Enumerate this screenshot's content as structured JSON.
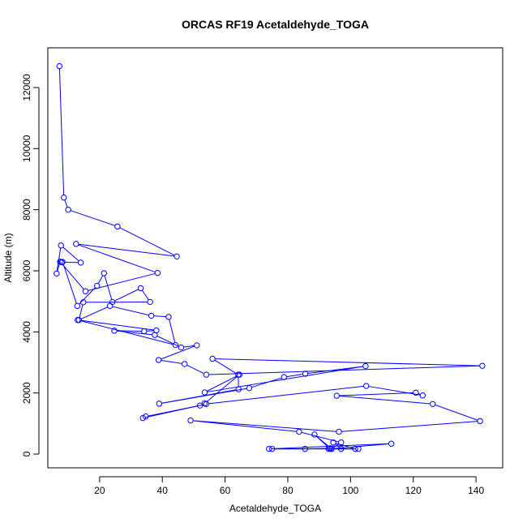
{
  "chart_data": {
    "type": "line",
    "title": "ORCAS RF19 Acetaldehyde_TOGA",
    "xlabel": "Acetaldehyde_TOGA",
    "ylabel": "Altitude (m)",
    "xlim": [
      3.5,
      148.5
    ],
    "ylim": [
      -450,
      13300
    ],
    "xticks": [
      20,
      40,
      60,
      80,
      100,
      120,
      140
    ],
    "yticks": [
      0,
      2000,
      4000,
      6000,
      8000,
      10000,
      12000
    ],
    "series_color": "#0000ff",
    "markers": "open-circle",
    "series": [
      {
        "x": [
          7.2,
          8.6,
          10.0,
          25.7,
          44.6,
          12.5,
          38.5,
          15.5,
          7.4,
          6.3,
          7.7,
          14.0,
          7.9,
          8.2,
          12.9,
          19.2,
          21.4,
          24.1,
          33.1,
          36.1,
          14.8,
          13.4,
          23.3,
          36.5,
          42.0,
          44.2,
          13.0,
          38.1,
          34.2,
          24.7,
          37.6,
          46.0,
          51.0,
          38.8,
          47.1,
          54.0,
          142.0,
          56.0,
          64.2,
          64.3,
          39.0,
          67.7,
          78.8,
          85.6,
          104.8,
          53.5,
          64.6,
          53.5,
          52.0,
          34.7,
          33.8,
          54.0,
          105.0,
          123.0,
          120.8,
          95.6,
          126.2,
          141.3,
          96.3,
          49.0,
          83.6,
          97.0,
          94.0,
          88.5,
          93.5,
          113.0,
          74.0,
          85.5,
          93.5,
          97.0,
          94.5,
          101.5,
          75.0,
          102.5,
          93.0
        ]
      }
    ],
    "series_y": [
      12700,
      8400,
      8000,
      7450,
      6470,
      6880,
      5930,
      5330,
      6300,
      5910,
      6830,
      6270,
      6280,
      6290,
      4850,
      5510,
      5920,
      4980,
      5430,
      4980,
      4970,
      4390,
      4850,
      4530,
      4490,
      3570,
      4390,
      4050,
      4020,
      4040,
      3900,
      3490,
      3560,
      3080,
      2950,
      2600,
      2890,
      3120,
      2600,
      2120,
      1650,
      2160,
      2520,
      2630,
      2880,
      2020,
      2600,
      1660,
      1590,
      1230,
      1180,
      1640,
      2230,
      1920,
      2010,
      1910,
      1640,
      1080,
      730,
      1100,
      730,
      380,
      170,
      640,
      170,
      340,
      170,
      170,
      190,
      170,
      380,
      170,
      170,
      170,
      170
    ]
  }
}
